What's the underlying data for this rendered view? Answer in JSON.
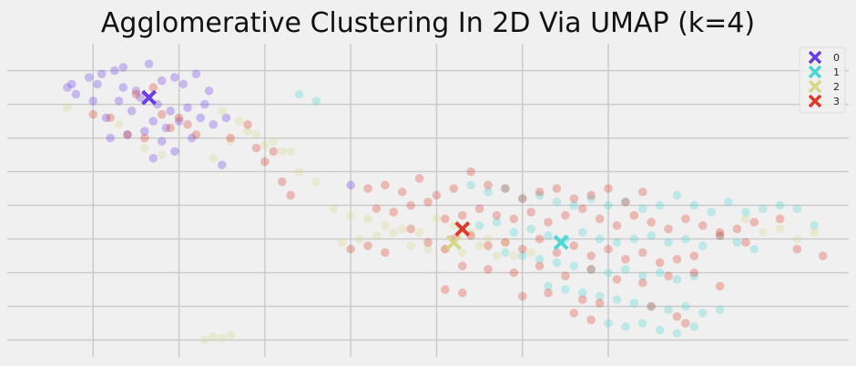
{
  "chart_data": {
    "type": "scatter",
    "title": "Agglomerative Clustering In 2D Via UMAP (k=4)",
    "xlabel": "",
    "ylabel": "",
    "xlim": [
      -1.0,
      8.8
    ],
    "ylim": [
      -1.5,
      7.8
    ],
    "xticks": [
      0,
      1,
      2,
      3,
      4,
      5,
      6
    ],
    "yticks": [
      -1,
      0,
      1,
      2,
      3,
      4,
      5,
      6,
      7
    ],
    "tick_labels_shown": false,
    "grid": true,
    "legend_position": "top-right",
    "legend_title": "",
    "colors": {
      "0": "#6a3de8",
      "1": "#4dd6d6",
      "2": "#d9d68a",
      "3": "#e03a2a"
    },
    "point_alpha": 0.3,
    "series": [
      {
        "name": "0",
        "x": [
          -0.3,
          -0.2,
          -0.25,
          -0.05,
          0.1,
          0.25,
          0.35,
          0.5,
          0.65,
          0.8,
          0.95,
          1.05,
          1.2,
          1.35,
          0.0,
          0.3,
          0.55,
          0.75,
          0.9,
          1.1,
          1.3,
          0.15,
          0.45,
          0.7,
          1.0,
          1.25,
          0.6,
          0.85,
          0.4,
          0.2,
          0.8,
          1.15,
          1.4,
          1.55,
          0.35,
          0.05,
          0.95,
          0.7,
          1.5,
          3.0
        ],
        "y": [
          6.5,
          6.3,
          6.6,
          6.8,
          6.9,
          7.0,
          6.5,
          6.4,
          7.2,
          6.7,
          6.8,
          6.6,
          6.9,
          6.4,
          6.1,
          6.1,
          6.2,
          6.0,
          5.8,
          5.9,
          6.0,
          5.6,
          5.8,
          5.5,
          5.5,
          5.6,
          5.2,
          5.3,
          5.1,
          5.0,
          4.9,
          5.0,
          5.4,
          5.6,
          7.1,
          6.6,
          4.6,
          4.4,
          4.2,
          3.6
        ]
      },
      {
        "name": "1",
        "x": [
          4.4,
          4.6,
          4.8,
          5.0,
          5.2,
          5.4,
          5.6,
          5.8,
          6.0,
          6.2,
          6.4,
          6.6,
          6.8,
          7.0,
          7.2,
          7.4,
          7.6,
          7.8,
          8.0,
          4.5,
          4.7,
          4.9,
          5.1,
          5.3,
          5.5,
          5.7,
          5.9,
          6.1,
          6.3,
          6.5,
          6.7,
          6.9,
          7.1,
          7.3,
          7.5,
          7.7,
          4.8,
          5.0,
          5.2,
          5.4,
          5.6,
          5.8,
          6.0,
          6.2,
          6.4,
          6.6,
          6.8,
          7.0,
          5.3,
          5.5,
          5.7,
          5.9,
          6.1,
          6.3,
          6.5,
          6.7,
          6.9,
          7.1,
          7.3,
          6.0,
          6.2,
          6.4,
          6.6,
          6.8,
          7.0,
          2.4,
          2.6,
          8.2,
          8.4
        ],
        "y": [
          3.6,
          3.4,
          3.5,
          3.2,
          3.3,
          3.1,
          3.0,
          3.2,
          3.0,
          3.1,
          2.9,
          3.0,
          3.3,
          3.0,
          2.8,
          3.1,
          2.8,
          2.9,
          3.0,
          2.4,
          2.5,
          2.2,
          2.3,
          2.1,
          2.0,
          2.2,
          2.0,
          1.9,
          2.0,
          2.1,
          1.9,
          2.0,
          1.8,
          2.1,
          1.9,
          1.7,
          1.6,
          1.5,
          1.4,
          1.3,
          1.2,
          1.1,
          1.0,
          1.1,
          0.9,
          1.0,
          0.8,
          0.9,
          0.6,
          0.5,
          0.4,
          0.3,
          0.2,
          0.1,
          0.0,
          -0.1,
          0.0,
          -0.2,
          -0.1,
          -0.5,
          -0.6,
          -0.5,
          -0.7,
          -0.8,
          -0.6,
          6.3,
          6.1,
          2.9,
          2.4
        ]
      },
      {
        "name": "2",
        "x": [
          -0.3,
          0.3,
          0.6,
          0.8,
          1.4,
          1.6,
          1.8,
          2.0,
          2.2,
          2.4,
          2.6,
          2.8,
          3.0,
          3.2,
          3.4,
          3.6,
          3.8,
          4.0,
          4.2,
          4.4,
          4.6,
          4.8,
          2.9,
          3.1,
          3.3,
          3.5,
          3.7,
          3.9,
          4.1,
          4.3,
          4.5,
          4.7,
          4.9,
          5.1,
          7.6,
          7.8,
          8.0,
          8.2,
          8.4,
          1.5,
          1.7,
          1.9,
          2.1,
          2.3,
          1.3,
          1.4,
          1.5,
          1.6
        ],
        "y": [
          5.9,
          5.4,
          4.7,
          4.5,
          4.4,
          4.9,
          5.2,
          4.8,
          4.6,
          4.0,
          3.7,
          2.9,
          2.7,
          2.6,
          2.4,
          2.3,
          2.2,
          2.6,
          2.4,
          2.2,
          2.0,
          1.9,
          1.9,
          2.0,
          2.1,
          2.2,
          1.8,
          1.7,
          1.7,
          1.6,
          1.8,
          1.5,
          1.5,
          1.6,
          2.6,
          2.2,
          2.3,
          2.0,
          2.2,
          5.8,
          5.5,
          5.1,
          4.9,
          4.6,
          -1.0,
          -0.9,
          -0.95,
          -0.85
        ]
      },
      {
        "name": "3",
        "x": [
          0.0,
          0.2,
          0.5,
          0.7,
          0.9,
          1.0,
          1.1,
          1.2,
          0.8,
          0.6,
          0.4,
          1.6,
          1.8,
          1.9,
          2.0,
          2.1,
          2.2,
          2.3,
          3.2,
          3.4,
          3.6,
          3.8,
          4.0,
          4.2,
          4.4,
          4.6,
          4.8,
          5.0,
          5.2,
          5.4,
          5.6,
          5.8,
          6.0,
          6.2,
          6.4,
          3.3,
          3.5,
          3.7,
          3.9,
          4.1,
          4.3,
          4.5,
          4.7,
          4.9,
          5.1,
          5.3,
          5.5,
          5.7,
          5.9,
          6.1,
          6.3,
          6.5,
          6.7,
          6.9,
          7.1,
          7.3,
          7.5,
          7.7,
          8.0,
          4.2,
          4.4,
          4.6,
          4.8,
          5.0,
          5.2,
          5.4,
          5.6,
          5.8,
          6.0,
          6.2,
          6.4,
          6.6,
          6.8,
          7.0,
          4.3,
          4.6,
          4.9,
          5.2,
          5.5,
          5.8,
          6.1,
          6.4,
          6.7,
          7.0,
          7.3,
          4.1,
          4.3,
          5.0,
          5.3,
          5.7,
          5.9,
          6.5,
          6.8,
          6.9,
          3.0,
          3.2,
          3.4,
          7.3,
          7.6,
          8.2,
          8.5,
          5.6,
          5.8,
          3.7,
          3.9,
          4.1
        ],
        "y": [
          5.7,
          5.6,
          6.3,
          6.5,
          5.3,
          5.6,
          5.4,
          5.1,
          5.7,
          5.0,
          5.1,
          5.0,
          5.4,
          4.7,
          4.3,
          4.6,
          3.7,
          3.3,
          3.5,
          3.6,
          3.4,
          3.8,
          3.3,
          3.5,
          4.0,
          3.6,
          3.5,
          3.2,
          3.4,
          3.5,
          3.2,
          3.3,
          3.5,
          3.1,
          3.4,
          2.9,
          2.8,
          3.0,
          3.1,
          2.6,
          2.7,
          2.9,
          2.7,
          2.6,
          2.8,
          2.5,
          2.7,
          2.9,
          2.6,
          2.4,
          2.7,
          2.5,
          2.3,
          2.6,
          2.4,
          2.2,
          2.3,
          2.5,
          2.6,
          2.0,
          2.1,
          1.8,
          1.9,
          1.7,
          2.0,
          1.6,
          1.8,
          1.5,
          1.7,
          1.4,
          1.6,
          1.3,
          1.4,
          1.5,
          1.2,
          1.1,
          1.0,
          1.2,
          0.9,
          1.1,
          0.8,
          0.7,
          0.9,
          1.0,
          0.6,
          0.5,
          0.4,
          0.3,
          0.4,
          0.2,
          0.1,
          0.0,
          -0.3,
          -0.5,
          1.7,
          1.8,
          1.6,
          2.1,
          1.9,
          1.7,
          1.5,
          -0.2,
          -0.4,
          2.3,
          1.9,
          1.7
        ]
      }
    ],
    "centroids": [
      {
        "name": "0",
        "x": 0.65,
        "y": 6.2
      },
      {
        "name": "1",
        "x": 5.45,
        "y": 1.9
      },
      {
        "name": "2",
        "x": 4.2,
        "y": 1.9
      },
      {
        "name": "3",
        "x": 4.3,
        "y": 2.3
      }
    ]
  }
}
